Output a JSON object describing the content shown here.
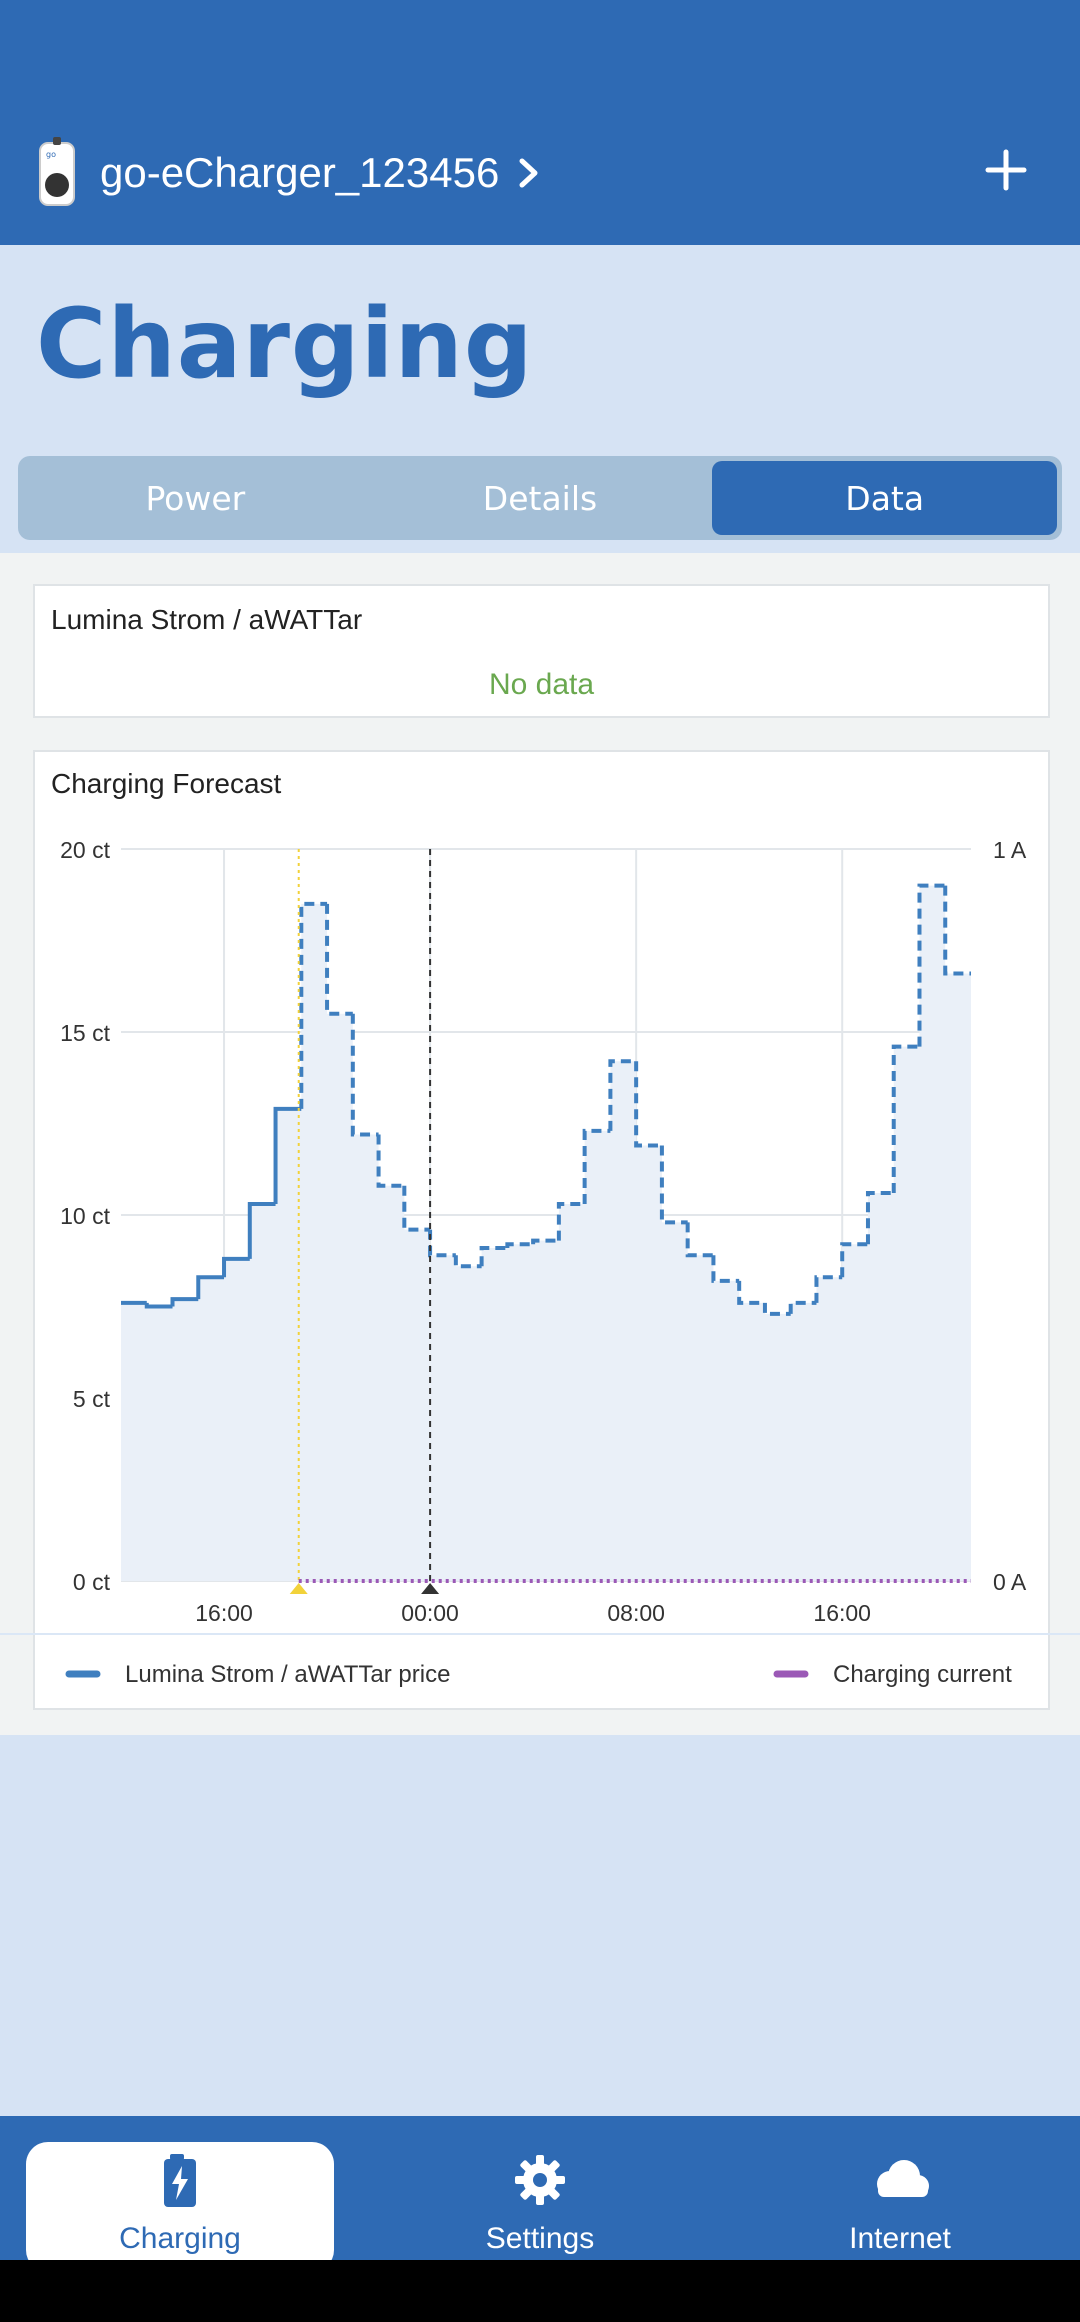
{
  "header": {
    "device_name": "go-eCharger_123456"
  },
  "page_title": "Charging",
  "tabs": [
    {
      "label": "Power",
      "active": false
    },
    {
      "label": "Details",
      "active": false
    },
    {
      "label": "Data",
      "active": true
    }
  ],
  "tariff_card": {
    "title": "Lumina Strom / aWATTar",
    "status": "No data"
  },
  "forecast_card": {
    "title": "Charging Forecast"
  },
  "chart_data": {
    "type": "line",
    "step": true,
    "x_unit": "hours (relative to 00:00 of next day)",
    "x_ticks": [
      {
        "x": -8,
        "label": "16:00"
      },
      {
        "x": 0,
        "label": "00:00"
      },
      {
        "x": 8,
        "label": "08:00"
      },
      {
        "x": 16,
        "label": "16:00"
      }
    ],
    "xlim": [
      -12,
      21
    ],
    "y_left": {
      "ticks": [
        "0 ct",
        "5 ct",
        "10 ct",
        "15 ct",
        "20 ct"
      ],
      "lim": [
        0,
        20
      ]
    },
    "y_right": {
      "ticks": [
        "0 A",
        "1 A"
      ],
      "lim": [
        0,
        1
      ]
    },
    "grid": true,
    "markers": [
      {
        "x": -5.1,
        "color": "#f2d23a",
        "style": "dotted"
      },
      {
        "x": 0,
        "color": "#333333",
        "style": "dashed"
      }
    ],
    "series": [
      {
        "name": "Lumina Strom / aWATTar price",
        "color": "#3f7fbf",
        "x": [
          -12,
          -11,
          -10,
          -9,
          -8,
          -7,
          -6,
          -5,
          -4,
          -3,
          -2,
          -1,
          0,
          1,
          2,
          3,
          4,
          5,
          6,
          7,
          8,
          9,
          10,
          11,
          12,
          13,
          14,
          15,
          16,
          17,
          18,
          19,
          20
        ],
        "values": [
          7.6,
          7.5,
          7.7,
          8.3,
          8.8,
          10.3,
          12.9,
          18.5,
          15.5,
          12.2,
          10.8,
          9.6,
          8.9,
          8.6,
          9.1,
          9.2,
          9.3,
          10.3,
          12.3,
          14.2,
          11.9,
          9.8,
          8.9,
          8.2,
          7.6,
          7.3,
          7.6,
          8.3,
          9.2,
          10.6,
          14.6,
          19.0,
          16.6
        ],
        "dashed_from_x": -5
      },
      {
        "name": "Charging current",
        "color": "#9b59b6",
        "x": [
          -5.1,
          21
        ],
        "values": [
          0,
          0
        ],
        "style": "dotted"
      }
    ]
  },
  "legend": [
    {
      "label": "Lumina Strom / aWATTar price",
      "color": "#3f7fbf"
    },
    {
      "label": "Charging current",
      "color": "#9b59b6"
    }
  ],
  "bottom_nav": [
    {
      "label": "Charging",
      "icon": "battery-bolt-icon",
      "active": true
    },
    {
      "label": "Settings",
      "icon": "gear-icon",
      "active": false
    },
    {
      "label": "Internet",
      "icon": "cloud-icon",
      "active": false
    }
  ]
}
